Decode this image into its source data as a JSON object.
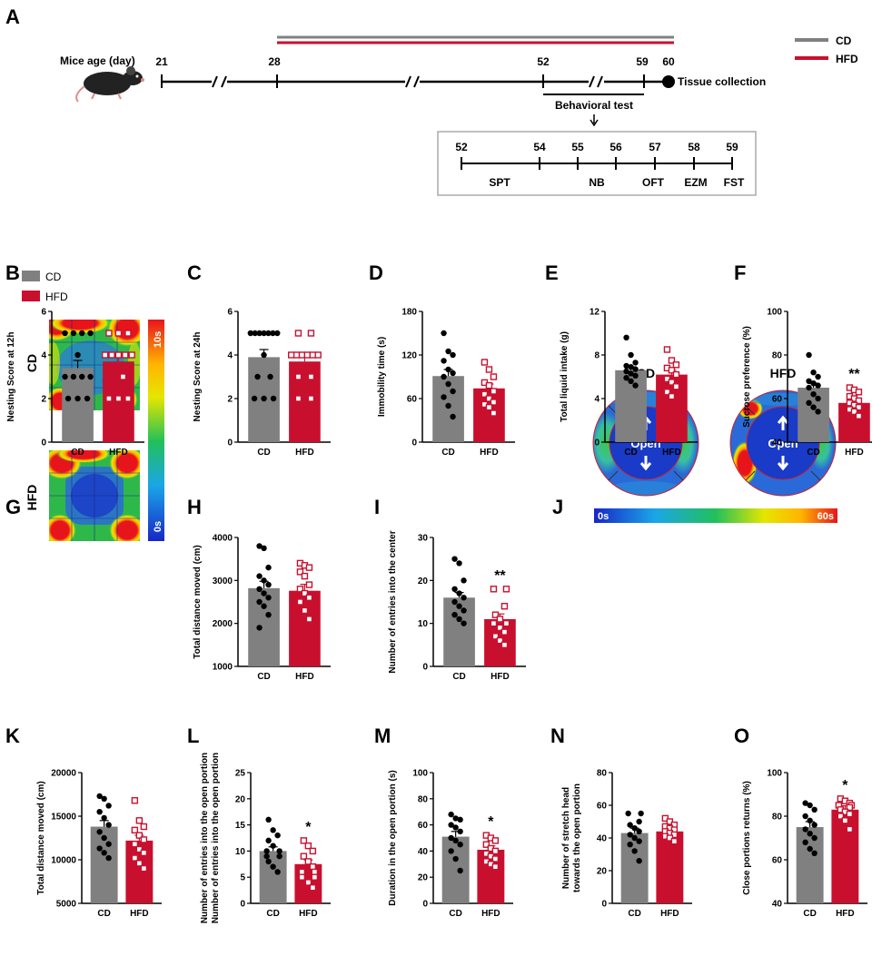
{
  "colors": {
    "cd": "#808080",
    "hfd": "#c8102e"
  },
  "panels": {
    "A": "A",
    "B": "B",
    "C": "C",
    "D": "D",
    "E": "E",
    "F": "F",
    "G": "G",
    "H": "H",
    "I": "I",
    "J": "J",
    "K": "K",
    "L": "L",
    "M": "M",
    "N": "N",
    "O": "O"
  },
  "timeline": {
    "age_label": "Mice age (day)",
    "days": [
      "21",
      "28",
      "52",
      "59",
      "60"
    ],
    "tissue": "Tissue collection",
    "behavioral": "Behavioral test",
    "legend": [
      {
        "name": "CD"
      },
      {
        "name": "HFD"
      }
    ],
    "sub_days": [
      "52",
      "54",
      "55",
      "56",
      "57",
      "58",
      "59"
    ],
    "tests": [
      "SPT",
      "NB",
      "OFT",
      "EZM",
      "FST"
    ]
  },
  "legend_b": [
    "CD",
    "HFD"
  ],
  "heatmap_g": {
    "rows": [
      "CD",
      "HFD"
    ],
    "scale": [
      "10s",
      "0s"
    ]
  },
  "heatmap_j": {
    "cols": [
      "CD",
      "HFD"
    ],
    "open": "Open",
    "scale": [
      "0s",
      "60s"
    ]
  },
  "chart_data": [
    {
      "id": "B",
      "type": "bar",
      "ylabel": "Nesting Score at 12h",
      "ylim": [
        0,
        6
      ],
      "yticks": [
        "0",
        "2",
        "4",
        "6"
      ],
      "categories": [
        "CD",
        "HFD"
      ],
      "values": [
        3.4,
        3.7
      ],
      "sem": [
        0.35,
        0.3
      ],
      "points": [
        [
          5,
          5,
          5,
          5,
          4,
          3,
          3,
          3,
          3,
          2,
          2,
          2
        ],
        [
          5,
          5,
          5,
          4,
          4,
          4,
          4,
          4,
          3,
          2,
          2,
          2
        ]
      ],
      "sig": ""
    },
    {
      "id": "C",
      "type": "bar",
      "ylabel": "Nesting Score at 24h",
      "ylim": [
        0,
        6
      ],
      "yticks": [
        "0",
        "2",
        "4",
        "6"
      ],
      "categories": [
        "CD",
        "HFD"
      ],
      "values": [
        3.9,
        3.7
      ],
      "sem": [
        0.35,
        0.3
      ],
      "points": [
        [
          5,
          5,
          5,
          5,
          5,
          5,
          5,
          4,
          3,
          3,
          2,
          2,
          2
        ],
        [
          5,
          5,
          4,
          4,
          4,
          4,
          4,
          4,
          3,
          3,
          2,
          2
        ]
      ],
      "sig": ""
    },
    {
      "id": "D",
      "type": "bar",
      "ylabel": "Immobility time (s)",
      "ylim": [
        0,
        180
      ],
      "yticks": [
        "0",
        "60",
        "120",
        "180"
      ],
      "categories": [
        "CD",
        "HFD"
      ],
      "values": [
        91,
        74
      ],
      "sem": [
        9,
        6
      ],
      "points": [
        [
          150,
          125,
          120,
          112,
          100,
          95,
          90,
          80,
          70,
          62,
          50,
          35
        ],
        [
          110,
          100,
          90,
          82,
          78,
          70,
          66,
          60,
          55,
          52,
          48,
          40
        ]
      ],
      "sig": ""
    },
    {
      "id": "E",
      "type": "bar",
      "ylabel": "Total liquid intake (g)",
      "ylim": [
        0,
        12
      ],
      "yticks": [
        "0",
        "4",
        "8",
        "12"
      ],
      "categories": [
        "CD",
        "HFD"
      ],
      "values": [
        6.6,
        6.2
      ],
      "sem": [
        0.3,
        0.4
      ],
      "points": [
        [
          9.6,
          8.0,
          7.3,
          7.0,
          6.9,
          6.7,
          6.5,
          6.3,
          6.1,
          5.9,
          5.6,
          5.2
        ],
        [
          8.5,
          7.5,
          7.1,
          6.8,
          6.6,
          6.2,
          5.8,
          5.5,
          5.1,
          4.6,
          4.2
        ]
      ],
      "sig": ""
    },
    {
      "id": "F",
      "type": "bar",
      "ylabel": "Sucrose preference (%)",
      "ylim": [
        40,
        100
      ],
      "yticks": [
        "40",
        "60",
        "80",
        "100"
      ],
      "categories": [
        "CD",
        "HFD"
      ],
      "values": [
        65,
        58
      ],
      "sem": [
        2,
        1.5
      ],
      "points": [
        [
          80,
          72,
          70,
          68,
          67,
          66,
          65,
          62,
          60,
          58,
          56,
          54
        ],
        [
          65,
          64,
          63,
          61,
          60,
          59,
          58,
          57,
          56,
          55,
          54,
          52
        ]
      ],
      "sig": "**"
    },
    {
      "id": "H",
      "type": "bar",
      "ylabel": "Total distance moved  (cm)",
      "ylim": [
        1000,
        4000
      ],
      "yticks": [
        "1000",
        "2000",
        "3000",
        "4000"
      ],
      "categories": [
        "CD",
        "HFD"
      ],
      "values": [
        2820,
        2760
      ],
      "sem": [
        160,
        150
      ],
      "points": [
        [
          3800,
          3750,
          3300,
          3100,
          3000,
          2900,
          2800,
          2700,
          2600,
          2500,
          2400,
          2200,
          1900
        ],
        [
          3400,
          3350,
          3300,
          3200,
          3100,
          2900,
          2800,
          2700,
          2600,
          2500,
          2300,
          2100
        ]
      ],
      "sig": ""
    },
    {
      "id": "I",
      "type": "bar",
      "ylabel": "Number of entries into the center",
      "ylim": [
        0,
        30
      ],
      "yticks": [
        "0",
        "10",
        "20",
        "30"
      ],
      "categories": [
        "CD",
        "HFD"
      ],
      "values": [
        16,
        11
      ],
      "sem": [
        1.2,
        1.2
      ],
      "points": [
        [
          25,
          24,
          20,
          18,
          17,
          16,
          15,
          14,
          13,
          12,
          11,
          10
        ],
        [
          18,
          18,
          14,
          12,
          11,
          10,
          10,
          9,
          8,
          7,
          6,
          5
        ]
      ],
      "sig": "**"
    },
    {
      "id": "K",
      "type": "bar",
      "ylabel": "Total distance moved  (cm)",
      "ylim": [
        5000,
        20000
      ],
      "yticks": [
        "5000",
        "10000",
        "15000",
        "20000"
      ],
      "categories": [
        "CD",
        "HFD"
      ],
      "values": [
        13800,
        12200
      ],
      "sem": [
        700,
        600
      ],
      "points": [
        [
          17300,
          17000,
          16200,
          15500,
          14800,
          14000,
          13200,
          12500,
          11800,
          11300,
          10800,
          10200
        ],
        [
          16800,
          14500,
          13800,
          13400,
          12800,
          12300,
          11800,
          11200,
          10800,
          10200,
          9600,
          9000
        ]
      ],
      "sig": ""
    },
    {
      "id": "L",
      "type": "bar",
      "ylabel": "Number of entries into the open portion",
      "ylim": [
        0,
        25
      ],
      "yticks": [
        "0",
        "5",
        "10",
        "15",
        "20",
        "25"
      ],
      "categories": [
        "CD",
        "HFD"
      ],
      "values": [
        10,
        7.5
      ],
      "sem": [
        0.8,
        0.8
      ],
      "points": [
        [
          16,
          14,
          13,
          12,
          11,
          10,
          10,
          9,
          9,
          8,
          7,
          6
        ],
        [
          12,
          11,
          10,
          9,
          8,
          7,
          6,
          6,
          5,
          5,
          4,
          3
        ]
      ],
      "sig": "*"
    },
    {
      "id": "M",
      "type": "bar",
      "ylabel": "Duration in the open portion (s)",
      "ylim": [
        0,
        100
      ],
      "yticks": [
        "0",
        "20",
        "40",
        "60",
        "80",
        "100"
      ],
      "categories": [
        "CD",
        "HFD"
      ],
      "values": [
        51,
        41
      ],
      "sem": [
        4,
        3
      ],
      "points": [
        [
          68,
          65,
          64,
          60,
          58,
          55,
          50,
          48,
          45,
          40,
          34,
          25
        ],
        [
          52,
          50,
          48,
          45,
          42,
          40,
          38,
          36,
          34,
          32,
          30,
          28
        ]
      ],
      "sig": "*"
    },
    {
      "id": "N",
      "type": "bar",
      "ylabel": "Number of stretch head towards the open portion",
      "ylim": [
        0,
        80
      ],
      "yticks": [
        "0",
        "20",
        "40",
        "60",
        "80"
      ],
      "categories": [
        "CD",
        "HFD"
      ],
      "values": [
        43,
        44
      ],
      "sem": [
        3,
        2
      ],
      "points": [
        [
          55,
          55,
          50,
          48,
          46,
          44,
          42,
          40,
          38,
          36,
          32,
          26
        ],
        [
          52,
          50,
          48,
          47,
          46,
          45,
          44,
          43,
          42,
          41,
          40,
          38
        ]
      ],
      "sig": ""
    },
    {
      "id": "O",
      "type": "bar",
      "ylabel": "Close portions returns (%)",
      "ylim": [
        40,
        100
      ],
      "yticks": [
        "40",
        "60",
        "80",
        "100"
      ],
      "categories": [
        "CD",
        "HFD"
      ],
      "values": [
        75,
        83
      ],
      "sem": [
        2.5,
        1.8
      ],
      "points": [
        [
          86,
          85,
          83,
          80,
          78,
          76,
          74,
          72,
          70,
          68,
          65,
          63
        ],
        [
          88,
          87,
          86,
          85,
          85,
          84,
          83,
          82,
          81,
          80,
          78,
          74
        ]
      ],
      "sig": "*"
    }
  ]
}
